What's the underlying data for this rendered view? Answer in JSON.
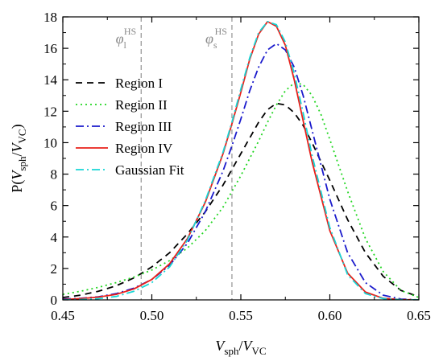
{
  "chart_data": {
    "type": "line",
    "xlabel": {
      "base": "V",
      "sub": "sph",
      "sep": "/",
      "base2": "V",
      "sub2": "VC"
    },
    "ylabel": {
      "pre": "P(",
      "base": "V",
      "sub": "sph",
      "sep": "/",
      "base2": "V",
      "sub2": "VC",
      "post": ")"
    },
    "xlim": [
      0.45,
      0.65
    ],
    "ylim": [
      0,
      18
    ],
    "xticks": [
      "0.45",
      "0.50",
      "0.55",
      "0.60",
      "0.65"
    ],
    "yticks": [
      "0",
      "2",
      "4",
      "6",
      "8",
      "10",
      "12",
      "14",
      "16",
      "18"
    ],
    "grid": false,
    "legend_position": "left",
    "annotations": [
      {
        "symbol": "φ",
        "sub": "l",
        "sup": "HS",
        "x": 0.494
      },
      {
        "symbol": "φ",
        "sub": "s",
        "sup": "HS",
        "x": 0.545
      }
    ],
    "series": [
      {
        "name": "Region I",
        "color": "#000000",
        "dash": "8,6",
        "x": [
          0.45,
          0.46,
          0.47,
          0.48,
          0.49,
          0.5,
          0.51,
          0.52,
          0.53,
          0.54,
          0.55,
          0.555,
          0.56,
          0.565,
          0.57,
          0.575,
          0.58,
          0.585,
          0.59,
          0.6,
          0.61,
          0.62,
          0.63,
          0.64,
          0.65
        ],
        "y": [
          0.15,
          0.3,
          0.55,
          0.9,
          1.4,
          2.1,
          3.0,
          4.2,
          5.6,
          7.3,
          9.3,
          10.3,
          11.3,
          12.1,
          12.5,
          12.4,
          11.9,
          11.1,
          10.0,
          7.6,
          5.1,
          3.0,
          1.5,
          0.6,
          0.2
        ]
      },
      {
        "name": "Region II",
        "color": "#22d622",
        "dash": "2,4",
        "x": [
          0.45,
          0.46,
          0.47,
          0.48,
          0.49,
          0.5,
          0.51,
          0.52,
          0.53,
          0.54,
          0.55,
          0.56,
          0.565,
          0.57,
          0.575,
          0.58,
          0.585,
          0.59,
          0.595,
          0.6,
          0.61,
          0.62,
          0.63,
          0.64,
          0.65
        ],
        "y": [
          0.35,
          0.55,
          0.8,
          1.1,
          1.45,
          1.9,
          2.5,
          3.3,
          4.4,
          5.9,
          7.9,
          10.1,
          11.3,
          12.4,
          13.3,
          13.8,
          13.7,
          13.0,
          11.8,
          10.2,
          6.9,
          3.9,
          1.8,
          0.6,
          0.15
        ]
      },
      {
        "name": "Region III",
        "color": "#1a1acc",
        "dash": "10,4,2,4",
        "x": [
          0.45,
          0.46,
          0.47,
          0.48,
          0.49,
          0.5,
          0.51,
          0.52,
          0.53,
          0.54,
          0.545,
          0.55,
          0.555,
          0.56,
          0.565,
          0.57,
          0.575,
          0.58,
          0.585,
          0.59,
          0.6,
          0.61,
          0.62,
          0.63,
          0.64,
          0.65
        ],
        "y": [
          0.05,
          0.1,
          0.2,
          0.4,
          0.75,
          1.3,
          2.2,
          3.6,
          5.6,
          8.2,
          9.8,
          11.5,
          13.3,
          14.8,
          15.9,
          16.3,
          15.9,
          14.8,
          13.0,
          10.8,
          6.4,
          3.0,
          1.1,
          0.3,
          0.05,
          0.0
        ]
      },
      {
        "name": "Region IV",
        "color": "#e8201a",
        "dash": "",
        "x": [
          0.45,
          0.46,
          0.47,
          0.48,
          0.49,
          0.5,
          0.51,
          0.52,
          0.53,
          0.54,
          0.545,
          0.55,
          0.555,
          0.56,
          0.565,
          0.57,
          0.575,
          0.58,
          0.585,
          0.59,
          0.6,
          0.61,
          0.62,
          0.63,
          0.64,
          0.65
        ],
        "y": [
          0.02,
          0.08,
          0.18,
          0.35,
          0.7,
          1.3,
          2.3,
          3.9,
          6.2,
          9.3,
          11.2,
          13.2,
          15.3,
          16.9,
          17.7,
          17.4,
          16.2,
          14.0,
          11.4,
          8.8,
          4.4,
          1.7,
          0.5,
          0.1,
          0.02,
          0.0
        ]
      },
      {
        "name": "Gaussian Fit",
        "color": "#18d6d6",
        "dash": "10,4,2,4",
        "x": [
          0.45,
          0.46,
          0.47,
          0.48,
          0.49,
          0.5,
          0.51,
          0.52,
          0.53,
          0.54,
          0.545,
          0.55,
          0.555,
          0.56,
          0.565,
          0.57,
          0.575,
          0.58,
          0.585,
          0.59,
          0.6,
          0.61,
          0.62,
          0.63,
          0.64,
          0.65
        ],
        "y": [
          0.0,
          0.02,
          0.08,
          0.22,
          0.55,
          1.1,
          2.1,
          3.8,
          6.3,
          9.4,
          11.3,
          13.4,
          15.4,
          17.0,
          17.7,
          17.5,
          16.4,
          14.4,
          11.9,
          9.2,
          4.6,
          1.6,
          0.4,
          0.08,
          0.01,
          0.0
        ]
      }
    ]
  }
}
